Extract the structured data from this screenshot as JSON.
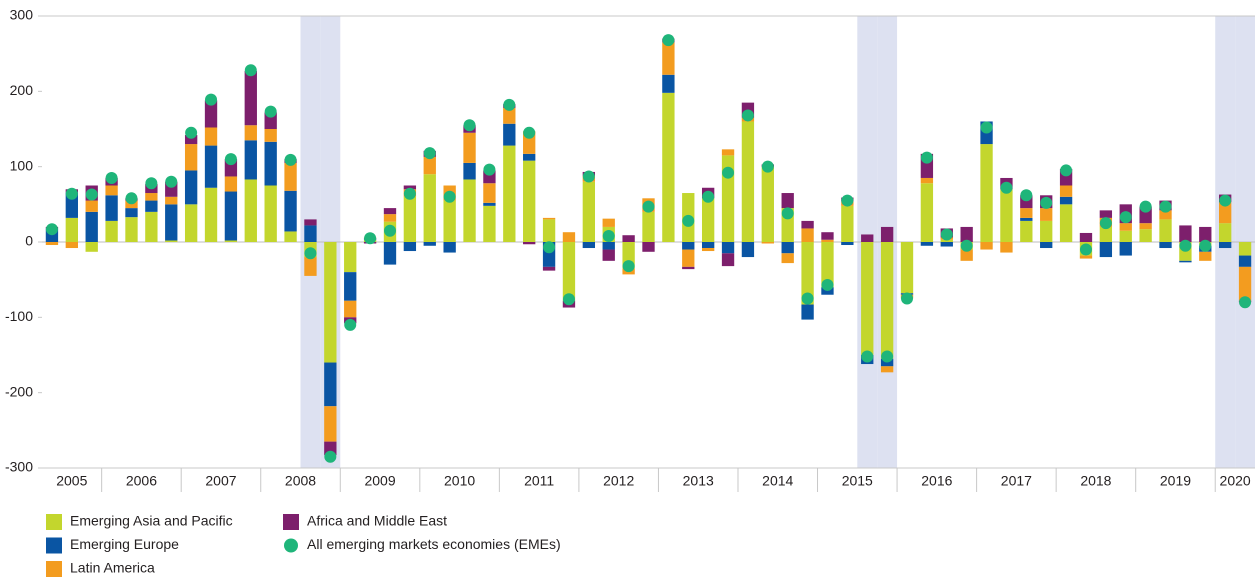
{
  "chart_data": {
    "type": "bar",
    "stacked": true,
    "categories": [
      "2005",
      null,
      null,
      "2006",
      null,
      null,
      null,
      "2007",
      null,
      null,
      null,
      "2008",
      null,
      null,
      null,
      "2009",
      null,
      null,
      null,
      "2010",
      null,
      null,
      null,
      "2011",
      null,
      null,
      null,
      "2012",
      null,
      null,
      null,
      "2013",
      null,
      null,
      null,
      "2014",
      null,
      null,
      null,
      "2015",
      null,
      null,
      null,
      "2016",
      null,
      null,
      null,
      "2017",
      null,
      null,
      null,
      "2018",
      null,
      null,
      null,
      "2019",
      null,
      null,
      null,
      "2020",
      null
    ],
    "shaded": [
      13,
      14,
      41,
      42,
      59,
      60
    ],
    "shade_color": "#dde1f1",
    "ylim": [
      -300,
      300
    ],
    "yticks": [
      -300,
      -200,
      -100,
      0,
      100,
      200,
      300
    ],
    "grid": false,
    "series": [
      {
        "name": "Emerging Asia and Pacific",
        "color": "#c3d62d",
        "kind": "bar",
        "values": [
          0,
          32,
          -13,
          28,
          33,
          40,
          2,
          50,
          72,
          2,
          83,
          75,
          14,
          -20,
          -160,
          -40,
          3,
          27,
          60,
          90,
          55,
          83,
          48,
          128,
          108,
          30,
          -78,
          80,
          20,
          -35,
          40,
          198,
          65,
          58,
          115,
          160,
          100,
          45,
          -83,
          -60,
          48,
          -150,
          -155,
          -68,
          78,
          3,
          -10,
          130,
          70,
          28,
          28,
          50,
          -18,
          20,
          15,
          17,
          30,
          -25,
          -5,
          25,
          -18
        ]
      },
      {
        "name": "Emerging Europe",
        "color": "#0a55a3",
        "kind": "bar",
        "values": [
          18,
          34,
          40,
          34,
          12,
          15,
          48,
          45,
          56,
          65,
          52,
          58,
          54,
          22,
          -58,
          -38,
          2,
          -30,
          -12,
          -5,
          -14,
          22,
          4,
          29,
          9,
          -33,
          0,
          -8,
          -10,
          0,
          0,
          24,
          -10,
          -8,
          -15,
          -20,
          0,
          -15,
          -20,
          -10,
          -4,
          -12,
          -10,
          -2,
          -5,
          -6,
          0,
          30,
          0,
          4,
          -8,
          10,
          0,
          -20,
          -18,
          0,
          -8,
          -2,
          -8,
          -8,
          -15
        ]
      },
      {
        "name": "Latin America",
        "color": "#f39c1f",
        "kind": "bar",
        "values": [
          -4,
          -8,
          15,
          13,
          10,
          10,
          10,
          35,
          24,
          20,
          20,
          17,
          37,
          -25,
          -47,
          -22,
          1,
          10,
          10,
          23,
          20,
          40,
          26,
          21,
          30,
          2,
          13,
          8,
          11,
          -8,
          18,
          43,
          -23,
          -4,
          8,
          5,
          -2,
          -13,
          18,
          3,
          6,
          0,
          -8,
          -5,
          7,
          3,
          -15,
          -10,
          -14,
          13,
          17,
          15,
          -4,
          12,
          10,
          8,
          12,
          0,
          -12,
          28,
          -45
        ]
      },
      {
        "name": "Africa and Middle East",
        "color": "#7d1f6c",
        "kind": "bar",
        "values": [
          2,
          4,
          20,
          10,
          3,
          12,
          20,
          12,
          36,
          23,
          72,
          22,
          5,
          8,
          -18,
          -8,
          -2,
          8,
          5,
          8,
          0,
          10,
          17,
          5,
          -3,
          -5,
          -9,
          5,
          -15,
          9,
          -13,
          5,
          -3,
          14,
          -17,
          20,
          3,
          20,
          10,
          10,
          5,
          10,
          20,
          0,
          32,
          12,
          20,
          0,
          15,
          17,
          17,
          22,
          12,
          10,
          25,
          22,
          13,
          22,
          20,
          10,
          -2
        ]
      },
      {
        "name": "All emerging markets economies (EMEs)",
        "color": "#1fb57a",
        "kind": "dot",
        "values": [
          17,
          64,
          63,
          85,
          58,
          78,
          80,
          145,
          189,
          110,
          228,
          173,
          109,
          -15,
          -285,
          -110,
          5,
          15,
          64,
          118,
          60,
          155,
          96,
          182,
          145,
          -7,
          -76,
          87,
          8,
          -32,
          47,
          268,
          28,
          60,
          92,
          168,
          100,
          38,
          -75,
          -57,
          55,
          -152,
          -152,
          -75,
          112,
          10,
          -5,
          152,
          72,
          62,
          52,
          95,
          -10,
          25,
          33,
          47,
          47,
          -5,
          -5,
          55,
          -80
        ]
      }
    ]
  }
}
